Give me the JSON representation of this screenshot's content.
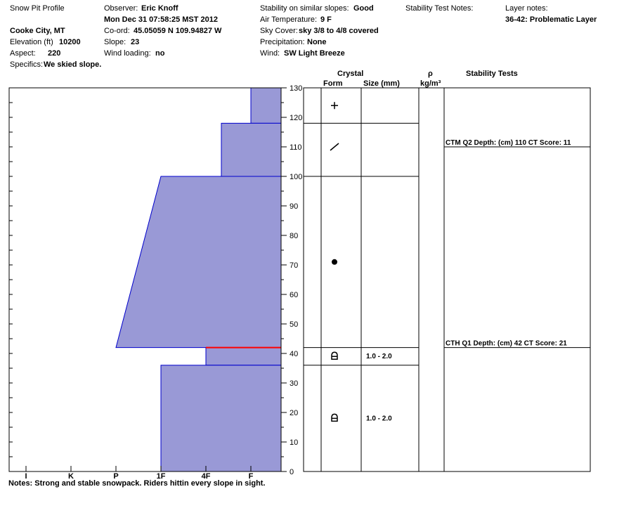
{
  "header": {
    "title": "Snow Pit Profile",
    "location": "Cooke City, MT",
    "elevation_label": "Elevation (ft)",
    "elevation_value": "10200",
    "aspect_label": "Aspect:",
    "aspect_value": "220",
    "specifics_label": "Specifics:",
    "specifics_value": "We skied slope.",
    "observer_label": "Observer:",
    "observer_value": "Eric Knoff",
    "datetime": "Mon Dec 31 07:58:25 MST 2012",
    "coord_label": "Co-ord:",
    "coord_value": "45.05059 N 109.94827 W",
    "slope_label": "Slope:",
    "slope_value": "23",
    "wind_loading_label": "Wind loading:",
    "wind_loading_value": "no",
    "stability_label": "Stability on similar slopes:",
    "stability_value": "Good",
    "air_temp_label": "Air Temperature:",
    "air_temp_value": "9 F",
    "sky_label": "Sky Cover:",
    "sky_value": "sky 3/8 to 4/8 covered",
    "precip_label": "Precipitation:",
    "precip_value": "None",
    "wind_label": "Wind:",
    "wind_value": "SW Light Breeze",
    "stability_test_notes_label": "Stability Test Notes:",
    "layer_notes_label": "Layer notes:",
    "layer_notes_value": "36-42: Problematic Layer"
  },
  "columns": {
    "crystal": "Crystal",
    "form": "Form",
    "size": "Size (mm)",
    "rho": "ρ",
    "density_unit": "kg/m³",
    "stability_tests": "Stability Tests"
  },
  "notes": "Notes:  Strong and stable snowpack.  Riders hittin every slope in sight.",
  "chart_data": {
    "type": "area",
    "title": "Snow Pit Profile",
    "y_axis": {
      "min": 0,
      "max": 130,
      "ticks": [
        0,
        10,
        20,
        30,
        40,
        50,
        60,
        70,
        80,
        90,
        100,
        110,
        120,
        130
      ]
    },
    "x_axis": {
      "categories": [
        "I",
        "K",
        "P",
        "1F",
        "4F",
        "F"
      ],
      "direction": "hardness increases to the left"
    },
    "colors": {
      "fill": "#9999d6",
      "edge": "#0000cc",
      "problem_line": "#ff0000"
    },
    "hardness_profile": [
      {
        "bottom": 118,
        "top": 130,
        "hardness_top": "F",
        "hardness_bottom": "F"
      },
      {
        "bottom": 100,
        "top": 118,
        "hardness_top": "F+",
        "hardness_bottom": "F+"
      },
      {
        "bottom": 42,
        "top": 100,
        "hardness_top": "1F",
        "hardness_bottom": "P"
      },
      {
        "bottom": 36,
        "top": 42,
        "hardness_top": "4F",
        "hardness_bottom": "4F"
      },
      {
        "bottom": 0,
        "top": 36,
        "hardness_top": "1F",
        "hardness_bottom": "1F"
      }
    ],
    "problem_layer_depth": 42,
    "layer_boundaries": [
      118,
      100,
      42,
      36
    ],
    "crystals": [
      {
        "height": 124,
        "form": "+",
        "size": ""
      },
      {
        "height": 110,
        "form": "/",
        "size": ""
      },
      {
        "height": 71,
        "form": "●",
        "size": ""
      },
      {
        "height": 39,
        "form": "depth-hoar",
        "size": "1.0 - 2.0"
      },
      {
        "height": 18,
        "form": "depth-hoar",
        "size": "1.0 - 2.0"
      }
    ],
    "stability_tests": [
      {
        "height": 110,
        "label": "CTM Q2 Depth: (cm) 110 CT Score: 11"
      },
      {
        "height": 42,
        "label": "CTH Q1 Depth: (cm) 42 CT Score: 21"
      }
    ]
  }
}
